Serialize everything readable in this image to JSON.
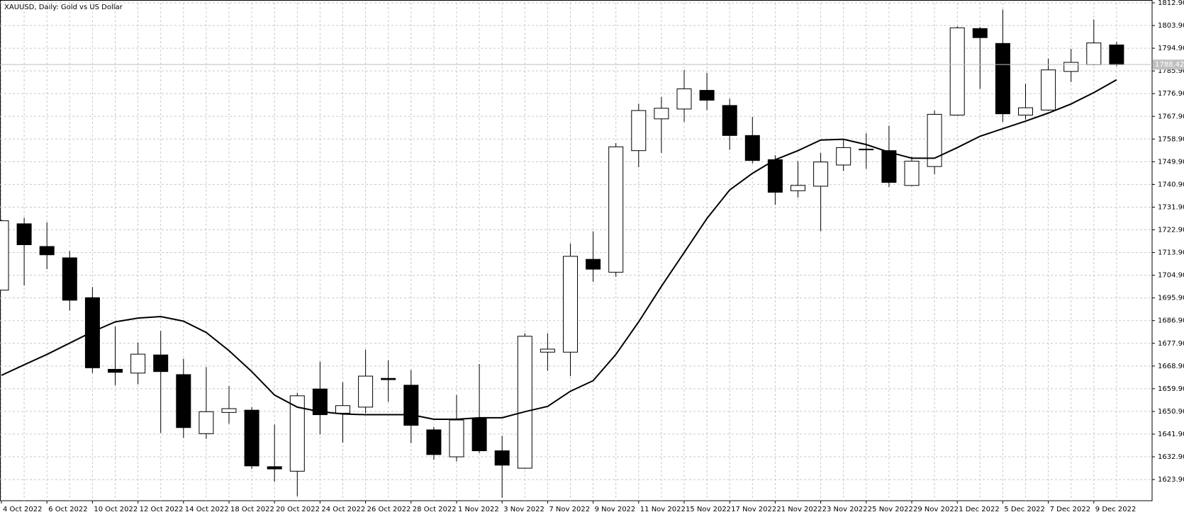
{
  "chart_data": {
    "type": "candlestick",
    "title": "XAUUSD, Daily:  Gold vs US Dollar",
    "categories": [
      "4 Oct 2022",
      null,
      "6 Oct 2022",
      null,
      "10 Oct 2022",
      null,
      "12 Oct 2022",
      null,
      "14 Oct 2022",
      null,
      "18 Oct 2022",
      null,
      "20 Oct 2022",
      null,
      "24 Oct 2022",
      null,
      "26 Oct 2022",
      null,
      "28 Oct 2022",
      null,
      "1 Nov 2022",
      null,
      "3 Nov 2022",
      null,
      "7 Nov 2022",
      null,
      "9 Nov 2022",
      null,
      "11 Nov 2022",
      null,
      "15 Nov 2022",
      null,
      "17 Nov 2022",
      null,
      "21 Nov 2022",
      null,
      "23 Nov 2022",
      null,
      "25 Nov 2022",
      null,
      "29 Nov 2022",
      null,
      "1 Dec 2022",
      null,
      "5 Dec 2022",
      null,
      "7 Dec 2022",
      null,
      "9 Dec 2022",
      null
    ],
    "open": [
      1699,
      1725.3,
      1716.3,
      1711.8,
      1696,
      1667.6,
      1666.1,
      1673.3,
      1665.5,
      1642.1,
      1650.5,
      1651.4,
      1629,
      1627.2,
      1659.8,
      1650.2,
      1652.6,
      1664,
      1661.3,
      1643.6,
      1632.9,
      1648.1,
      1635.3,
      1628.4,
      1674.4,
      1674.4,
      1711.2,
      1706.1,
      1754.3,
      1766.9,
      1770.8,
      1778.2,
      1772.2,
      1760.3,
      1750.7,
      1738.4,
      1740.2,
      1748.6,
      1754.6,
      1754.3,
      1740.5,
      1748,
      1768.4,
      1802.7,
      1796.8,
      1768.4,
      1770.4,
      1785.7,
      1788.4,
      1796.2
    ],
    "high": [
      1727,
      1727.7,
      1725.9,
      1714.5,
      1700.2,
      1684.6,
      1678.3,
      1682.8,
      1671.8,
      1668.5,
      1661,
      1652.6,
      1645.7,
      1658.3,
      1670.6,
      1662.5,
      1675.4,
      1671.2,
      1667.3,
      1644.8,
      1657.4,
      1669.7,
      1641.2,
      1681.9,
      1681.9,
      1717.5,
      1722.3,
      1757.3,
      1772.9,
      1775.6,
      1786.3,
      1785.1,
      1774.9,
      1767.7,
      1752.5,
      1750.1,
      1753.4,
      1758.8,
      1761.2,
      1764.2,
      1751.9,
      1770.2,
      1803.6,
      1803.3,
      1810.2,
      1780.9,
      1790.8,
      1794.7,
      1806.3,
      1797.4
    ],
    "low": [
      1699,
      1700.8,
      1707.3,
      1690.9,
      1666.1,
      1661.3,
      1661.6,
      1642.4,
      1640.4,
      1640,
      1646,
      1628.1,
      1623,
      1617.3,
      1641.8,
      1638.5,
      1650.2,
      1654.7,
      1638.3,
      1631.7,
      1631.1,
      1634.4,
      1616.7,
      1628.1,
      1667,
      1664.9,
      1702.3,
      1704.3,
      1747.7,
      1753.4,
      1765.7,
      1770.4,
      1754.6,
      1749.2,
      1732.8,
      1735.7,
      1722.3,
      1746.2,
      1747.1,
      1739.9,
      1740.2,
      1745,
      1768.1,
      1778.8,
      1765.7,
      1766.6,
      1770.1,
      1781.5,
      1788.1,
      1787.8
    ],
    "close": [
      1726.5,
      1717,
      1713,
      1695,
      1668.2,
      1666.4,
      1673.6,
      1666.7,
      1644.5,
      1650.8,
      1652,
      1629.3,
      1628.1,
      1657.1,
      1649.6,
      1653.2,
      1664.9,
      1663.5,
      1645.4,
      1633.8,
      1647.5,
      1635.3,
      1629.6,
      1680.7,
      1675.6,
      1712.4,
      1707.3,
      1755.8,
      1770.2,
      1771.1,
      1778.8,
      1774.3,
      1760.3,
      1750.4,
      1737.8,
      1740.5,
      1749.8,
      1755.5,
      1754.9,
      1741.7,
      1750.1,
      1768.7,
      1803,
      1799.1,
      1768.9,
      1771.3,
      1786.3,
      1789.3,
      1797,
      1788.4
    ],
    "up_color": "#ffffff",
    "down_color": "#000000",
    "series": [
      {
        "color": "#000000",
        "values": [
          1665.2,
          1669.4,
          1673.5,
          1678,
          1682.5,
          1686.4,
          1687.9,
          1688.5,
          1686.7,
          1682.2,
          1675,
          1666.7,
          1657.4,
          1652.6,
          1650.8,
          1649.9,
          1649.6,
          1649.6,
          1649.6,
          1647.8,
          1647.8,
          1648.4,
          1648.4,
          1650.8,
          1652.9,
          1658.9,
          1663.1,
          1673.5,
          1686.4,
          1700.5,
          1713.9,
          1727.4,
          1738.7,
          1745.3,
          1750.7,
          1754.3,
          1758.5,
          1758.8,
          1756.7,
          1753.7,
          1751.3,
          1751.3,
          1755.5,
          1760,
          1763,
          1766,
          1769.2,
          1772.8,
          1777.3,
          1782.4
        ]
      }
    ],
    "last_price": 1788.42,
    "ylim": [
      1615.5,
      1812.9
    ],
    "yticks": [
      {
        "value": 1623.9,
        "label": "1623.90"
      },
      {
        "value": 1632.9,
        "label": "1632.90"
      },
      {
        "value": 1641.9,
        "label": "1641.90"
      },
      {
        "value": 1650.9,
        "label": "1650.90"
      },
      {
        "value": 1659.9,
        "label": "1659.90"
      },
      {
        "value": 1668.9,
        "label": "1668.90"
      },
      {
        "value": 1677.9,
        "label": "1677.90"
      },
      {
        "value": 1686.9,
        "label": "1686.90"
      },
      {
        "value": 1695.9,
        "label": "1695.90"
      },
      {
        "value": 1704.9,
        "label": "1704.90"
      },
      {
        "value": 1713.9,
        "label": "1713.90"
      },
      {
        "value": 1722.9,
        "label": "1722.90"
      },
      {
        "value": 1731.9,
        "label": "1731.90"
      },
      {
        "value": 1740.9,
        "label": "1740.90"
      },
      {
        "value": 1749.9,
        "label": "1749.90"
      },
      {
        "value": 1758.9,
        "label": "1758.90"
      },
      {
        "value": 1767.9,
        "label": "1767.90"
      },
      {
        "value": 1776.9,
        "label": "1776.90"
      },
      {
        "value": 1785.9,
        "label": "1785.90"
      },
      {
        "value": 1794.9,
        "label": "1794.90"
      },
      {
        "value": 1803.9,
        "label": "1803.90"
      },
      {
        "value": 1812.9,
        "label": "1812.90"
      }
    ],
    "grid": true
  }
}
